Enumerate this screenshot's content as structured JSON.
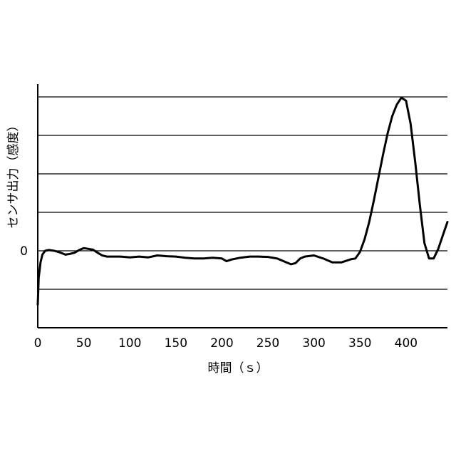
{
  "chart_data": {
    "type": "line",
    "xlabel": "時間（ｓ）",
    "ylabel": "センサ出力（感度）",
    "xlim": [
      0,
      445
    ],
    "xticks": [
      0,
      50,
      100,
      150,
      200,
      250,
      300,
      350,
      400
    ],
    "y_tick_labels": [
      {
        "value": 0,
        "label": "0"
      }
    ],
    "ylim": [
      -2,
      4.3
    ],
    "gridlines_y": [
      -1,
      0,
      1,
      2,
      3,
      4
    ],
    "grid": "horizontal",
    "series": [
      {
        "x": [
          0,
          1,
          3,
          5,
          8,
          12,
          18,
          25,
          30,
          35,
          40,
          45,
          50,
          55,
          60,
          65,
          70,
          75,
          80,
          90,
          100,
          110,
          120,
          130,
          140,
          150,
          160,
          170,
          180,
          190,
          200,
          205,
          210,
          220,
          230,
          240,
          250,
          260,
          270,
          275,
          280,
          285,
          290,
          300,
          310,
          320,
          330,
          340,
          345,
          350,
          355,
          360,
          365,
          370,
          375,
          380,
          385,
          390,
          395,
          400,
          405,
          410,
          415,
          420,
          425,
          430,
          435,
          440,
          445
        ],
        "y": [
          -1.4,
          -0.7,
          -0.3,
          -0.1,
          0.0,
          0.02,
          0.0,
          -0.05,
          -0.1,
          -0.08,
          -0.05,
          0.02,
          0.07,
          0.05,
          0.03,
          -0.05,
          -0.12,
          -0.15,
          -0.15,
          -0.15,
          -0.17,
          -0.15,
          -0.17,
          -0.12,
          -0.14,
          -0.15,
          -0.18,
          -0.2,
          -0.2,
          -0.18,
          -0.2,
          -0.27,
          -0.23,
          -0.18,
          -0.15,
          -0.15,
          -0.16,
          -0.2,
          -0.3,
          -0.35,
          -0.32,
          -0.2,
          -0.15,
          -0.12,
          -0.2,
          -0.3,
          -0.3,
          -0.22,
          -0.2,
          -0.03,
          0.3,
          0.75,
          1.3,
          1.9,
          2.5,
          3.05,
          3.5,
          3.8,
          3.98,
          3.9,
          3.3,
          2.3,
          1.2,
          0.2,
          -0.2,
          -0.2,
          0.05,
          0.4,
          0.75
        ]
      }
    ]
  }
}
